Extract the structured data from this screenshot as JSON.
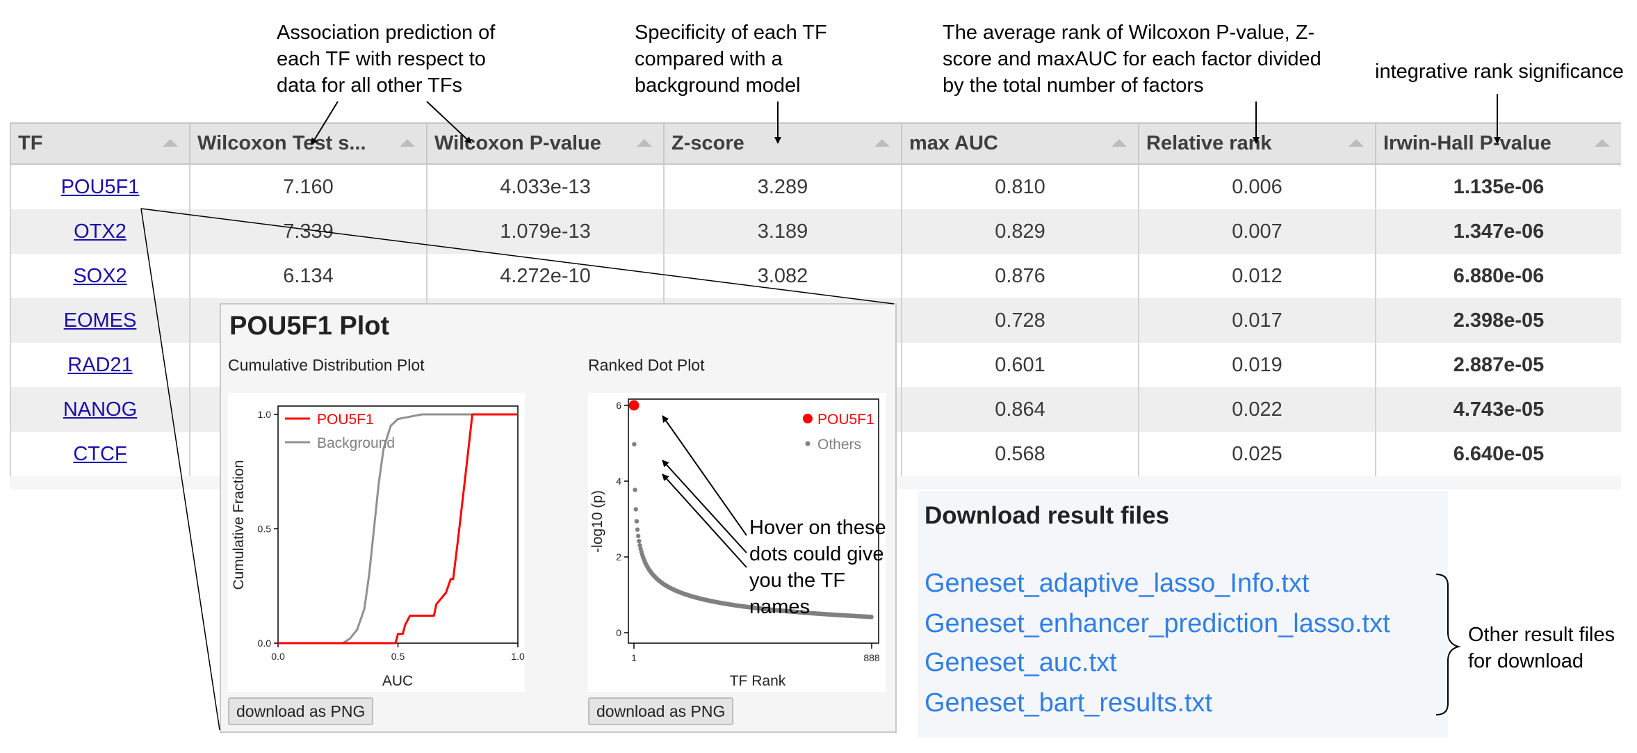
{
  "annotations": {
    "wilcoxon_line1": "Association prediction of",
    "wilcoxon_line2": "each TF with respect to",
    "wilcoxon_line3": "data for all other TFs",
    "zscore_line1": "Specificity of each TF",
    "zscore_line2": "compared with a",
    "zscore_line3": "background model",
    "relrank_line1": "The average rank of Wilcoxon P-value, Z-",
    "relrank_line2": "score and maxAUC for each factor divided",
    "relrank_line3": "by the total number of factors",
    "irwin": "integrative rank significance",
    "hover_line1": "Hover on these",
    "hover_line2": "dots could give",
    "hover_line3": "you the TF",
    "hover_line4": "names",
    "other_line1": "Other result files",
    "other_line2": "for download"
  },
  "table": {
    "headers": [
      "TF",
      "Wilcoxon Test s...",
      "Wilcoxon P-value",
      "Z-score",
      "max AUC",
      "Relative rank",
      "Irwin-Hall P-value"
    ],
    "rows": [
      {
        "tf": "POU5F1",
        "wts": "7.160",
        "wp": "4.033e-13",
        "z": "3.289",
        "auc": "0.810",
        "rr": "0.006",
        "ih": "1.135e-06"
      },
      {
        "tf": "OTX2",
        "wts": "7.339",
        "wp": "1.079e-13",
        "z": "3.189",
        "auc": "0.829",
        "rr": "0.007",
        "ih": "1.347e-06"
      },
      {
        "tf": "SOX2",
        "wts": "6.134",
        "wp": "4.272e-10",
        "z": "3.082",
        "auc": "0.876",
        "rr": "0.012",
        "ih": "6.880e-06"
      },
      {
        "tf": "EOMES",
        "wts": "",
        "wp": "",
        "z": "",
        "auc": "0.728",
        "rr": "0.017",
        "ih": "2.398e-05"
      },
      {
        "tf": "RAD21",
        "wts": "",
        "wp": "",
        "z": "",
        "auc": "0.601",
        "rr": "0.019",
        "ih": "2.887e-05"
      },
      {
        "tf": "NANOG",
        "wts": "",
        "wp": "",
        "z": "",
        "auc": "0.864",
        "rr": "0.022",
        "ih": "4.743e-05"
      },
      {
        "tf": "CTCF",
        "wts": "",
        "wp": "",
        "z": "",
        "auc": "0.568",
        "rr": "0.025",
        "ih": "6.640e-05"
      }
    ]
  },
  "popup": {
    "title": "POU5F1 Plot",
    "cdf_title": "Cumulative Distribution Plot",
    "rank_title": "Ranked Dot Plot",
    "download_label": "download as PNG"
  },
  "cdf": {
    "legend_tf": "POU5F1",
    "legend_bg": "Background",
    "ylabel": "Cumulative Fraction",
    "xlabel": "AUC",
    "yticks": [
      "0.0",
      "0.5",
      "1.0"
    ],
    "xticks": [
      "0.0",
      "0.5",
      "1.0"
    ],
    "tf_color": "#ff0000",
    "bg_color": "#909090"
  },
  "rank": {
    "legend_tf": "POU5F1",
    "legend_others": "Others",
    "ylabel": "-log10 (p)",
    "xlabel": "TF Rank",
    "yticks": [
      "0",
      "2",
      "4",
      "6"
    ],
    "xticks": [
      "1",
      "888"
    ],
    "tf_color": "#ff0000",
    "dot_color": "#808080"
  },
  "downloads": {
    "title": "Download result files",
    "files": [
      "Geneset_adaptive_lasso_Info.txt",
      "Geneset_enhancer_prediction_lasso.txt",
      "Geneset_auc.txt",
      "Geneset_bart_results.txt"
    ],
    "link_color": "#2f7fe8"
  },
  "chart_data": [
    {
      "type": "line",
      "title": "Cumulative Distribution Plot",
      "xlabel": "AUC",
      "ylabel": "Cumulative Fraction",
      "xlim": [
        0,
        1
      ],
      "ylim": [
        0,
        1
      ],
      "series": [
        {
          "name": "POU5F1",
          "x": [
            0,
            0.49,
            0.5,
            0.52,
            0.53,
            0.55,
            0.65,
            0.66,
            0.7,
            0.72,
            0.73,
            0.75,
            0.78,
            0.81,
            1.0
          ],
          "y": [
            0,
            0,
            0.04,
            0.04,
            0.08,
            0.12,
            0.12,
            0.17,
            0.22,
            0.28,
            0.28,
            0.45,
            0.72,
            1.0,
            1.0
          ]
        },
        {
          "name": "Background",
          "x": [
            0,
            0.27,
            0.3,
            0.33,
            0.36,
            0.38,
            0.4,
            0.42,
            0.44,
            0.47,
            0.5,
            0.55,
            0.6,
            1.0
          ],
          "y": [
            0,
            0,
            0.02,
            0.06,
            0.15,
            0.3,
            0.5,
            0.7,
            0.85,
            0.95,
            0.98,
            0.99,
            1.0,
            1.0
          ]
        }
      ]
    },
    {
      "type": "scatter",
      "title": "Ranked Dot Plot",
      "xlabel": "TF Rank",
      "ylabel": "-log10 (p)",
      "xlim": [
        1,
        888
      ],
      "ylim": [
        0,
        6
      ],
      "highlight": {
        "name": "POU5F1",
        "rank": 1,
        "value": 6.0
      },
      "others_curve": {
        "name": "Others",
        "a": 6.1,
        "k": 0.28,
        "min": 0.05,
        "n": 888
      }
    }
  ]
}
